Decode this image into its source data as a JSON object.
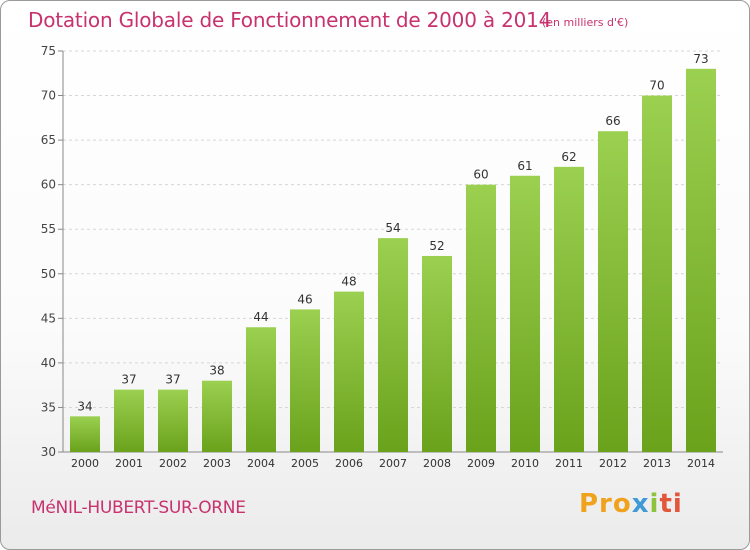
{
  "header": {
    "title": "Dotation Globale de Fonctionnement de 2000 à 2014",
    "unit": "(en milliers d'€)"
  },
  "footer": {
    "commune": "MéNIL-HUBERT-SUR-ORNE",
    "logo_parts": [
      "Pro",
      "x",
      "i",
      "ti"
    ]
  },
  "colors": {
    "accent": "#c8326e",
    "bar_top": "#9bd050",
    "bar_bottom": "#6aa21c",
    "grid": "#d6d6d6",
    "axis": "#888888"
  },
  "chart_data": {
    "type": "bar",
    "title": "Dotation Globale de Fonctionnement de 2000 à 2014",
    "xlabel": "",
    "ylabel": "",
    "categories": [
      "2000",
      "2001",
      "2002",
      "2003",
      "2004",
      "2005",
      "2006",
      "2007",
      "2008",
      "2009",
      "2010",
      "2011",
      "2012",
      "2013",
      "2014"
    ],
    "values": [
      34,
      37,
      37,
      38,
      44,
      46,
      48,
      54,
      52,
      60,
      61,
      62,
      66,
      70,
      73
    ],
    "ylim": [
      30,
      75
    ],
    "yticks": [
      30,
      35,
      40,
      45,
      50,
      55,
      60,
      65,
      70,
      75
    ],
    "grid": true,
    "data_labels": true
  }
}
